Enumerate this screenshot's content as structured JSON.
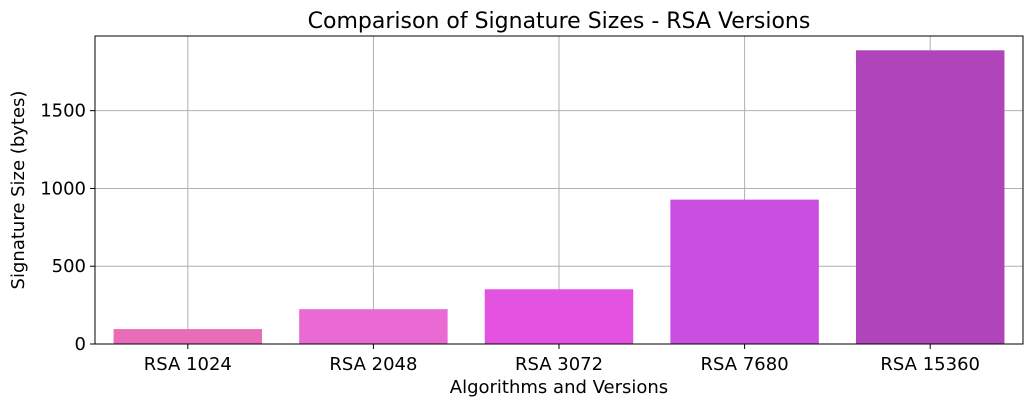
{
  "chart_data": {
    "type": "bar",
    "title": "Comparison of Signature Sizes - RSA Versions",
    "xlabel": "Algorithms and Versions",
    "ylabel": "Signature Size (bytes)",
    "categories": [
      "RSA 1024",
      "RSA 2048",
      "RSA 3072",
      "RSA 7680",
      "RSA 15360"
    ],
    "values": [
      96,
      224,
      352,
      928,
      1888
    ],
    "colors": [
      "#e86cb8",
      "#e86ad2",
      "#e352e0",
      "#c94fe0",
      "#b045bb"
    ],
    "ylim": [
      0,
      1980
    ],
    "yticks": [
      0,
      500,
      1000,
      1500
    ],
    "grid": true,
    "legend": "none"
  }
}
